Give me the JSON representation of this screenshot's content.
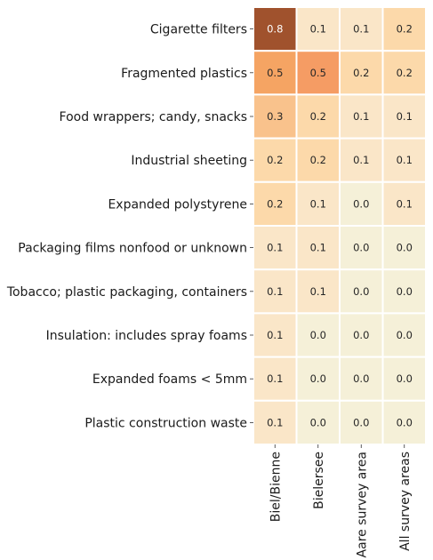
{
  "chart_data": {
    "type": "heatmap",
    "title": "",
    "xlabel": "",
    "ylabel": "",
    "rows": [
      "Cigarette filters",
      "Fragmented plastics",
      "Food wrappers; candy, snacks",
      "Industrial sheeting",
      "Expanded polystyrene",
      "Packaging films nonfood or unknown",
      "Tobacco; plastic packaging, containers",
      "Insulation: includes spray foams",
      "Expanded foams < 5mm",
      "Plastic construction waste"
    ],
    "columns": [
      "Biel/Bienne",
      "Bielersee",
      "Aare survey area",
      "All survey areas"
    ],
    "values": [
      [
        0.8,
        0.1,
        0.1,
        0.2
      ],
      [
        0.5,
        0.5,
        0.2,
        0.2
      ],
      [
        0.3,
        0.2,
        0.1,
        0.1
      ],
      [
        0.2,
        0.2,
        0.1,
        0.1
      ],
      [
        0.2,
        0.1,
        0.0,
        0.1
      ],
      [
        0.1,
        0.1,
        0.0,
        0.0
      ],
      [
        0.1,
        0.1,
        0.0,
        0.0
      ],
      [
        0.1,
        0.0,
        0.0,
        0.0
      ],
      [
        0.1,
        0.0,
        0.0,
        0.0
      ],
      [
        0.1,
        0.0,
        0.0,
        0.0
      ]
    ],
    "cell_colors": [
      [
        "#a0522d",
        "#fae6c8",
        "#fae6c8",
        "#fcd9aa"
      ],
      [
        "#f5a463",
        "#f59c64",
        "#fcd9aa",
        "#fcd9aa"
      ],
      [
        "#f9c28c",
        "#fcd9aa",
        "#fae6c8",
        "#fae6c8"
      ],
      [
        "#fcd9aa",
        "#fcd9aa",
        "#fae6c8",
        "#fae6c8"
      ],
      [
        "#fcd9aa",
        "#fae6c8",
        "#f5f0d8",
        "#fae6c8"
      ],
      [
        "#fae6c8",
        "#fae6c8",
        "#f5f0d8",
        "#f5f0d8"
      ],
      [
        "#fae6c8",
        "#fae6c8",
        "#f5f0d8",
        "#f5f0d8"
      ],
      [
        "#fae6c8",
        "#f5f0d8",
        "#f5f0d8",
        "#f5f0d8"
      ],
      [
        "#fae6c8",
        "#f5f0d8",
        "#f5f0d8",
        "#f5f0d8"
      ],
      [
        "#fae6c8",
        "#f5f0d8",
        "#f5f0d8",
        "#f5f0d8"
      ]
    ],
    "value_format": "1 decimal",
    "colormap": "light cream to dark sienna",
    "grid": false,
    "legend": "none"
  }
}
